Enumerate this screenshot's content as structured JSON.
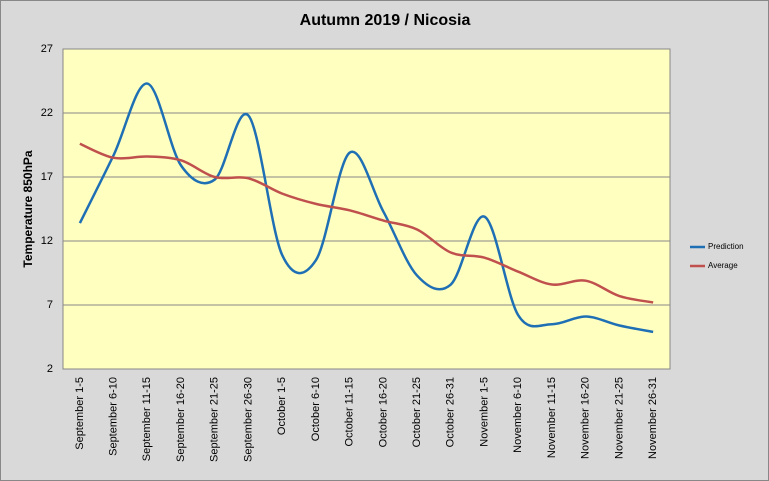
{
  "chart_data": {
    "type": "line",
    "title": "Autumn 2019 / Nicosia",
    "y_label": "Temperature 850hPa",
    "categories": [
      "September 1-5",
      "September 6-10",
      "September 11-15",
      "September 16-20",
      "September 21-25",
      "September 26-30",
      "October 1-5",
      "October 6-10",
      "October 11-15",
      "October 16-20",
      "October 21-25",
      "October 26-31",
      "November 1-5",
      "November 6-10",
      "November 11-15",
      "November 16-20",
      "November 21-25",
      "November 26-31"
    ],
    "series": [
      {
        "name": "Prediction",
        "color": "#1f6fb5",
        "values": [
          13.4,
          18.7,
          24.3,
          17.9,
          16.8,
          21.8,
          10.9,
          10.5,
          18.9,
          14.3,
          9.3,
          8.6,
          13.9,
          6.2,
          5.5,
          6.1,
          5.4,
          4.9
        ]
      },
      {
        "name": "Average",
        "color": "#c0504d",
        "values": [
          19.6,
          18.5,
          18.6,
          18.3,
          17.0,
          16.9,
          15.7,
          14.9,
          14.4,
          13.6,
          12.9,
          11.1,
          10.7,
          9.6,
          8.6,
          8.9,
          7.7,
          7.2
        ]
      }
    ],
    "ylim": [
      2,
      27
    ],
    "yticks": [
      2,
      7,
      12,
      17,
      22,
      27
    ],
    "grid": true,
    "smooth": true,
    "legend": "right"
  }
}
